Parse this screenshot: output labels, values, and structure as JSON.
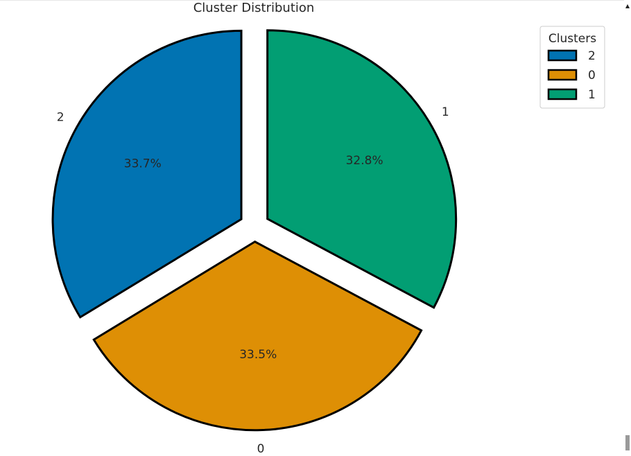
{
  "chart_data": {
    "type": "pie",
    "title": "Cluster Distribution",
    "slices": [
      {
        "label": "2",
        "value": 33.7,
        "pct_label": "33.7%",
        "color": "#0173B2"
      },
      {
        "label": "0",
        "value": 33.5,
        "pct_label": "33.5%",
        "color": "#DE8F05"
      },
      {
        "label": "1",
        "value": 32.8,
        "pct_label": "32.8%",
        "color": "#029E73"
      }
    ],
    "legend": {
      "title": "Clusters",
      "placement": "top-right",
      "entries": [
        "2",
        "0",
        "1"
      ]
    },
    "exploded": true,
    "edgecolor": "#000000"
  }
}
